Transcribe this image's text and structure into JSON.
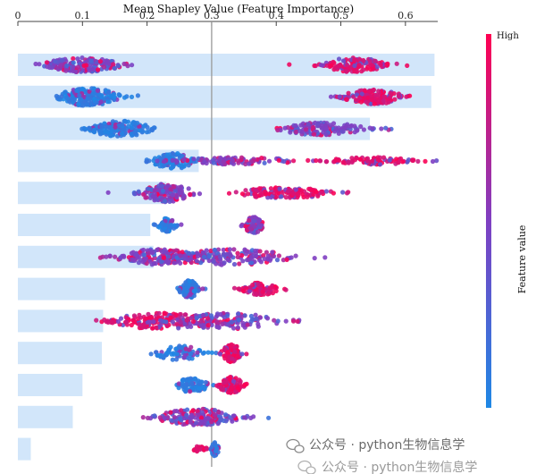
{
  "chart_data": {
    "type": "scatter",
    "title": "Mean Shapley Value (Feature Importance)",
    "xlim": [
      0,
      0.65
    ],
    "x_ticks": [
      "0",
      "0.1",
      "0.2",
      "0.3",
      "0.4",
      "0.5",
      "0.6"
    ],
    "x_tick_values": [
      0,
      0.1,
      0.2,
      0.3,
      0.4,
      0.5,
      0.6
    ],
    "reference_line": 0.3,
    "colors": {
      "bar": "#d2e6fa",
      "low": "#1e88e5",
      "mid": "#7f3fc2",
      "high": "#ff0052",
      "axis": "#444444",
      "reference_line": "#999999"
    },
    "features": [
      {
        "rank": 1,
        "mean_shap": 0.645,
        "clusters": [
          {
            "c": 0.1,
            "s": 0.032,
            "n": 190,
            "col": "mid",
            "h": 8
          },
          {
            "c": 0.52,
            "s": 0.025,
            "n": 140,
            "col": "high",
            "h": 8
          }
        ]
      },
      {
        "rank": 2,
        "mean_shap": 0.64,
        "clusters": [
          {
            "c": 0.11,
            "s": 0.025,
            "n": 190,
            "col": "low",
            "h": 10
          },
          {
            "c": 0.5,
            "s": 0.012,
            "n": 10,
            "col": "mid",
            "h": 2
          },
          {
            "c": 0.55,
            "s": 0.025,
            "n": 140,
            "col": "high",
            "h": 8
          }
        ]
      },
      {
        "rank": 3,
        "mean_shap": 0.545,
        "clusters": [
          {
            "c": 0.16,
            "s": 0.025,
            "n": 170,
            "col": "low",
            "h": 9
          },
          {
            "c": 0.47,
            "s": 0.035,
            "n": 130,
            "col": "mid",
            "h": 7
          }
        ]
      },
      {
        "rank": 4,
        "mean_shap": 0.28,
        "clusters": [
          {
            "c": 0.24,
            "s": 0.017,
            "n": 110,
            "col": "low",
            "h": 9
          },
          {
            "c": 0.34,
            "s": 0.05,
            "n": 110,
            "col": "mid",
            "h": 4
          },
          {
            "c": 0.55,
            "s": 0.04,
            "n": 90,
            "col": "high",
            "h": 4
          }
        ]
      },
      {
        "rank": 5,
        "mean_shap": 0.23,
        "clusters": [
          {
            "c": 0.23,
            "s": 0.022,
            "n": 160,
            "col": "mid",
            "h": 10
          },
          {
            "c": 0.41,
            "s": 0.04,
            "n": 130,
            "col": "high",
            "h": 6
          }
        ]
      },
      {
        "rank": 6,
        "mean_shap": 0.205,
        "clusters": [
          {
            "c": 0.23,
            "s": 0.008,
            "n": 70,
            "col": "low",
            "h": 8
          },
          {
            "c": 0.365,
            "s": 0.008,
            "n": 85,
            "col": "mid",
            "h": 9
          }
        ]
      },
      {
        "rank": 7,
        "mean_shap": 0.21,
        "clusters": [
          {
            "c": 0.22,
            "s": 0.035,
            "n": 160,
            "col": "mid",
            "h": 9
          },
          {
            "c": 0.33,
            "s": 0.05,
            "n": 170,
            "col": "mid",
            "h": 9
          }
        ]
      },
      {
        "rank": 8,
        "mean_shap": 0.135,
        "clusters": [
          {
            "c": 0.265,
            "s": 0.008,
            "n": 90,
            "col": "low",
            "h": 10
          },
          {
            "c": 0.375,
            "s": 0.015,
            "n": 85,
            "col": "high",
            "h": 7
          }
        ]
      },
      {
        "rank": 9,
        "mean_shap": 0.132,
        "clusters": [
          {
            "c": 0.22,
            "s": 0.04,
            "n": 170,
            "col": "high",
            "h": 9
          },
          {
            "c": 0.32,
            "s": 0.045,
            "n": 140,
            "col": "mid",
            "h": 9
          }
        ]
      },
      {
        "rank": 10,
        "mean_shap": 0.13,
        "clusters": [
          {
            "c": 0.25,
            "s": 0.02,
            "n": 80,
            "col": "low",
            "h": 8
          },
          {
            "c": 0.33,
            "s": 0.008,
            "n": 100,
            "col": "high",
            "h": 10
          }
        ]
      },
      {
        "rank": 11,
        "mean_shap": 0.1,
        "clusters": [
          {
            "c": 0.27,
            "s": 0.013,
            "n": 80,
            "col": "low",
            "h": 9
          },
          {
            "c": 0.33,
            "s": 0.01,
            "n": 90,
            "col": "high",
            "h": 9
          }
        ]
      },
      {
        "rank": 12,
        "mean_shap": 0.085,
        "clusters": [
          {
            "c": 0.28,
            "s": 0.035,
            "n": 180,
            "col": "mid",
            "h": 9
          }
        ]
      },
      {
        "rank": 13,
        "mean_shap": 0.02,
        "clusters": [
          {
            "c": 0.28,
            "s": 0.008,
            "n": 25,
            "col": "high",
            "h": 3
          },
          {
            "c": 0.305,
            "s": 0.003,
            "n": 25,
            "col": "low",
            "h": 8
          }
        ]
      }
    ]
  },
  "colorbar": {
    "high_label": "High",
    "title": "Feature value"
  },
  "watermark": {
    "line1": "公众号 · python生物信息学",
    "line2": "公众号 · python生物信息学"
  }
}
